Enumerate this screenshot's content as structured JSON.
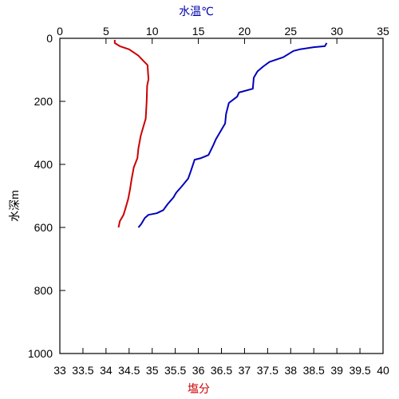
{
  "chart_data": {
    "type": "line",
    "title": "",
    "temp_axis": {
      "label": "水温℃",
      "label_color": "#0000aa",
      "position": "top",
      "range": [
        0,
        35
      ],
      "ticks": [
        "0",
        "5",
        "10",
        "15",
        "20",
        "25",
        "30",
        "35"
      ]
    },
    "salinity_axis": {
      "label": "塩分",
      "label_color": "#cc0000",
      "position": "bottom",
      "range": [
        33,
        40
      ],
      "ticks": [
        "33",
        "33.5",
        "34",
        "34.5",
        "35",
        "35.5",
        "36",
        "36.5",
        "37",
        "37.5",
        "38",
        "38.5",
        "39",
        "39.5",
        "40"
      ]
    },
    "depth_axis": {
      "label": "水深m",
      "position": "left",
      "range": [
        0,
        1000
      ],
      "inverted": true,
      "ticks": [
        "0",
        "200",
        "400",
        "600",
        "800",
        "1000"
      ]
    },
    "series": [
      {
        "axis": "temp",
        "color": "#0000bb",
        "points": [
          [
            28.9,
            15
          ],
          [
            28.7,
            25
          ],
          [
            27.5,
            28
          ],
          [
            26.0,
            35
          ],
          [
            25.3,
            40
          ],
          [
            24.2,
            60
          ],
          [
            22.7,
            75
          ],
          [
            22.0,
            90
          ],
          [
            21.4,
            105
          ],
          [
            21.0,
            125
          ],
          [
            20.9,
            160
          ],
          [
            19.4,
            172
          ],
          [
            19.2,
            185
          ],
          [
            18.3,
            205
          ],
          [
            18.0,
            240
          ],
          [
            17.9,
            270
          ],
          [
            17.5,
            290
          ],
          [
            16.9,
            320
          ],
          [
            16.6,
            340
          ],
          [
            16.1,
            370
          ],
          [
            15.3,
            380
          ],
          [
            14.6,
            385
          ],
          [
            14.2,
            420
          ],
          [
            13.9,
            445
          ],
          [
            13.2,
            470
          ],
          [
            12.6,
            490
          ],
          [
            12.3,
            505
          ],
          [
            11.7,
            525
          ],
          [
            11.2,
            545
          ],
          [
            10.5,
            555
          ],
          [
            9.6,
            560
          ],
          [
            9.2,
            570
          ],
          [
            8.8,
            590
          ],
          [
            8.5,
            600
          ]
        ]
      },
      {
        "axis": "salinity",
        "color": "#cc0000",
        "points": [
          [
            34.19,
            5
          ],
          [
            34.19,
            15
          ],
          [
            34.3,
            25
          ],
          [
            34.5,
            35
          ],
          [
            34.7,
            55
          ],
          [
            34.8,
            70
          ],
          [
            34.9,
            85
          ],
          [
            34.91,
            110
          ],
          [
            34.92,
            130
          ],
          [
            34.89,
            150
          ],
          [
            34.88,
            200
          ],
          [
            34.86,
            255
          ],
          [
            34.8,
            285
          ],
          [
            34.75,
            310
          ],
          [
            34.7,
            350
          ],
          [
            34.68,
            380
          ],
          [
            34.6,
            410
          ],
          [
            34.55,
            450
          ],
          [
            34.52,
            480
          ],
          [
            34.48,
            510
          ],
          [
            34.42,
            540
          ],
          [
            34.38,
            560
          ],
          [
            34.3,
            580
          ],
          [
            34.27,
            600
          ]
        ]
      }
    ]
  }
}
